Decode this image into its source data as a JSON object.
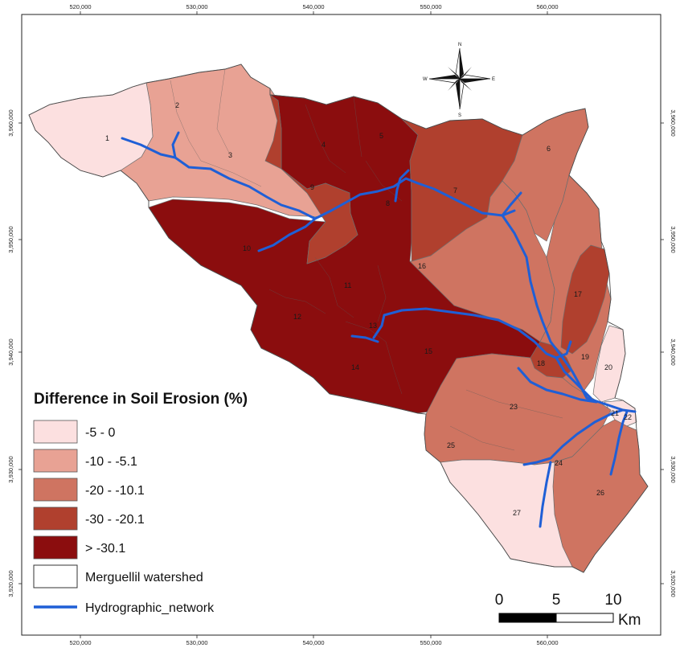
{
  "map": {
    "x_ticks": [
      "520,000",
      "530,000",
      "540,000",
      "550,000",
      "560,000"
    ],
    "y_ticks": [
      "3,960,000",
      "3,950,000",
      "3,940,000",
      "3,930,000",
      "3,920,000"
    ],
    "subwatershed_labels": [
      "1",
      "2",
      "3",
      "4",
      "5",
      "6",
      "7",
      "8",
      "9",
      "10",
      "11",
      "12",
      "13",
      "14",
      "15",
      "16",
      "17",
      "18",
      "19",
      "20",
      "21",
      "22",
      "23",
      "24",
      "25",
      "26",
      "27"
    ],
    "north_arrow": {
      "n": "N",
      "s": "S",
      "e": "E",
      "w": "W"
    }
  },
  "legend": {
    "title": "Difference in Soil Erosion (%)",
    "classes": [
      {
        "label": "-5 - 0",
        "color": "#fce0e0"
      },
      {
        "label": "-10 - -5.1",
        "color": "#e8a294"
      },
      {
        "label": "-20 - -10.1",
        "color": "#cf7461"
      },
      {
        "label": "-30 - -20.1",
        "color": "#b0402e"
      },
      {
        "label": "> -30.1",
        "color": "#8b0d0e"
      }
    ],
    "watershed_label": "Merguellil watershed",
    "network_label": "Hydrographic_network",
    "network_color": "#1f5fd6"
  },
  "scale_bar": {
    "labels": [
      "0",
      "5",
      "10"
    ],
    "unit": "Km"
  }
}
